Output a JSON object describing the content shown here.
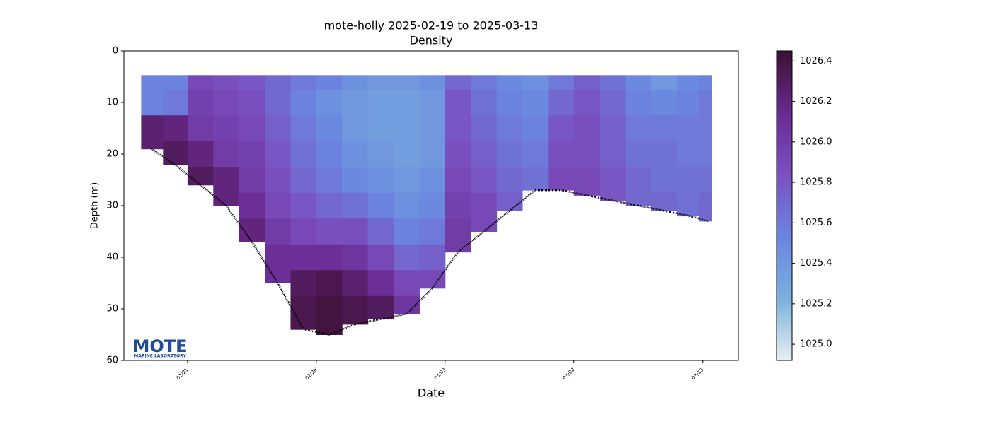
{
  "chart_data": {
    "type": "section",
    "title": "mote-holly 2025-02-19 to 2025-03-13",
    "subtitle": "Density",
    "xlabel": "Date",
    "ylabel": "Depth (m)",
    "xlim": [
      -0.47,
      23.38
    ],
    "xticks": [
      {
        "value": 2,
        "label": "02/21"
      },
      {
        "value": 7,
        "label": "02/26"
      },
      {
        "value": 12,
        "label": "03/03"
      },
      {
        "value": 17,
        "label": "03/08"
      },
      {
        "value": 22,
        "label": "03/13"
      }
    ],
    "ylim": [
      0,
      60
    ],
    "y_inverted": true,
    "yticks": [
      0,
      10,
      20,
      30,
      40,
      50,
      60
    ],
    "clim": [
      1024.92,
      1026.45
    ],
    "cticks": [
      {
        "value": 1025.0,
        "label": "1025.0"
      },
      {
        "value": 1025.2,
        "label": "1025.2"
      },
      {
        "value": 1025.4,
        "label": "1025.4"
      },
      {
        "value": 1025.6,
        "label": "1025.6"
      },
      {
        "value": 1025.8,
        "label": "1025.8"
      },
      {
        "value": 1026.0,
        "label": "1026.0"
      },
      {
        "value": 1026.2,
        "label": "1026.2"
      },
      {
        "value": 1026.4,
        "label": "1026.4"
      }
    ],
    "colormap": [
      "#e6f0f0",
      "#7ab0de",
      "#6a85e0",
      "#7a50c0",
      "#6a2a90",
      "#3a1030"
    ],
    "bottom_color": "#000000",
    "logo": {
      "text": "MOTE",
      "subtext": "MARINE LABORATORY"
    },
    "profiles": [
      {
        "x": 0.6,
        "bottom": 19,
        "depths": [
          5,
          10,
          15
        ],
        "values": [
          1025.55,
          1025.55,
          1026.25
        ]
      },
      {
        "x": 1.5,
        "bottom": 22,
        "depths": [
          5,
          10,
          15,
          20
        ],
        "values": [
          1025.55,
          1025.6,
          1026.2,
          1026.3
        ]
      },
      {
        "x": 2.5,
        "bottom": 26,
        "depths": [
          5,
          10,
          15,
          20,
          25
        ],
        "values": [
          1025.9,
          1025.95,
          1026.0,
          1026.2,
          1026.3
        ]
      },
      {
        "x": 3.5,
        "bottom": 30,
        "depths": [
          5,
          10,
          15,
          20,
          25
        ],
        "values": [
          1025.85,
          1025.9,
          1025.95,
          1026.0,
          1026.2
        ]
      },
      {
        "x": 4.5,
        "bottom": 37,
        "depths": [
          5,
          10,
          15,
          20,
          25,
          30,
          35
        ],
        "values": [
          1025.8,
          1025.85,
          1025.9,
          1025.95,
          1026.0,
          1026.1,
          1026.2
        ]
      },
      {
        "x": 5.5,
        "bottom": 45,
        "depths": [
          5,
          10,
          15,
          20,
          25,
          30,
          35,
          40
        ],
        "values": [
          1025.7,
          1025.7,
          1025.75,
          1025.8,
          1025.85,
          1025.9,
          1026.0,
          1026.1
        ]
      },
      {
        "x": 6.5,
        "bottom": 54,
        "depths": [
          5,
          10,
          15,
          20,
          25,
          30,
          35,
          40,
          45,
          50
        ],
        "values": [
          1025.6,
          1025.55,
          1025.6,
          1025.65,
          1025.7,
          1025.8,
          1025.9,
          1026.1,
          1026.3,
          1026.35
        ]
      },
      {
        "x": 7.5,
        "bottom": 55,
        "depths": [
          5,
          10,
          15,
          20,
          25,
          30,
          35,
          40,
          45,
          50
        ],
        "values": [
          1025.55,
          1025.45,
          1025.5,
          1025.55,
          1025.6,
          1025.7,
          1025.85,
          1026.1,
          1026.35,
          1026.4
        ]
      },
      {
        "x": 8.5,
        "bottom": 53,
        "depths": [
          5,
          10,
          15,
          20,
          25,
          30,
          35,
          40,
          45,
          50
        ],
        "values": [
          1025.45,
          1025.4,
          1025.4,
          1025.45,
          1025.5,
          1025.65,
          1025.85,
          1026.05,
          1026.25,
          1026.35
        ]
      },
      {
        "x": 9.5,
        "bottom": 52,
        "depths": [
          5,
          10,
          15,
          20,
          25,
          30,
          35,
          40,
          45,
          50
        ],
        "values": [
          1025.4,
          1025.35,
          1025.35,
          1025.4,
          1025.45,
          1025.55,
          1025.7,
          1025.9,
          1026.1,
          1026.3
        ]
      },
      {
        "x": 10.5,
        "bottom": 51,
        "depths": [
          5,
          10,
          15,
          20,
          25,
          30,
          35,
          40,
          45,
          50
        ],
        "values": [
          1025.4,
          1025.35,
          1025.35,
          1025.35,
          1025.4,
          1025.45,
          1025.55,
          1025.7,
          1025.9,
          1026.05
        ]
      },
      {
        "x": 11.5,
        "bottom": 46,
        "depths": [
          5,
          10,
          15,
          20,
          25,
          30,
          35,
          40,
          45
        ],
        "values": [
          1025.45,
          1025.4,
          1025.4,
          1025.4,
          1025.45,
          1025.5,
          1025.6,
          1025.75,
          1025.9
        ]
      },
      {
        "x": 12.5,
        "bottom": 39,
        "depths": [
          5,
          10,
          15,
          20,
          25,
          30,
          35
        ],
        "values": [
          1025.7,
          1025.8,
          1025.8,
          1025.85,
          1025.9,
          1025.95,
          1026.0
        ]
      },
      {
        "x": 13.5,
        "bottom": 35,
        "depths": [
          5,
          10,
          15,
          20,
          25,
          30
        ],
        "values": [
          1025.6,
          1025.65,
          1025.7,
          1025.75,
          1025.8,
          1025.9
        ]
      },
      {
        "x": 14.5,
        "bottom": 31,
        "depths": [
          5,
          10,
          15,
          20,
          25,
          30
        ],
        "values": [
          1025.5,
          1025.55,
          1025.6,
          1025.65,
          1025.7,
          1025.75
        ]
      },
      {
        "x": 15.5,
        "bottom": 27,
        "depths": [
          5,
          10,
          15,
          20,
          25
        ],
        "values": [
          1025.45,
          1025.5,
          1025.55,
          1025.6,
          1025.65
        ]
      },
      {
        "x": 16.5,
        "bottom": 27,
        "depths": [
          5,
          10,
          15,
          20,
          25
        ],
        "values": [
          1025.6,
          1025.7,
          1025.8,
          1025.85,
          1025.9
        ]
      },
      {
        "x": 17.5,
        "bottom": 28,
        "depths": [
          5,
          10,
          15,
          20,
          25
        ],
        "values": [
          1025.75,
          1025.8,
          1025.85,
          1025.85,
          1025.9
        ]
      },
      {
        "x": 18.5,
        "bottom": 29,
        "depths": [
          5,
          10,
          15,
          20,
          25
        ],
        "values": [
          1025.65,
          1025.7,
          1025.75,
          1025.75,
          1025.8
        ]
      },
      {
        "x": 19.5,
        "bottom": 30,
        "depths": [
          5,
          10,
          15,
          20,
          25
        ],
        "values": [
          1025.5,
          1025.55,
          1025.6,
          1025.65,
          1025.7
        ]
      },
      {
        "x": 20.5,
        "bottom": 31,
        "depths": [
          5,
          10,
          15,
          20,
          25,
          30
        ],
        "values": [
          1025.4,
          1025.5,
          1025.6,
          1025.65,
          1025.65,
          1025.7
        ]
      },
      {
        "x": 21.5,
        "bottom": 32,
        "depths": [
          5,
          10,
          15,
          20,
          25,
          30
        ],
        "values": [
          1025.5,
          1025.55,
          1025.6,
          1025.6,
          1025.65,
          1025.65
        ]
      },
      {
        "x": 22.2,
        "bottom": 33,
        "depths": [
          5,
          10,
          15,
          20,
          25,
          30
        ],
        "values": [
          1025.55,
          1025.6,
          1025.6,
          1025.6,
          1025.65,
          1025.7
        ]
      }
    ]
  }
}
